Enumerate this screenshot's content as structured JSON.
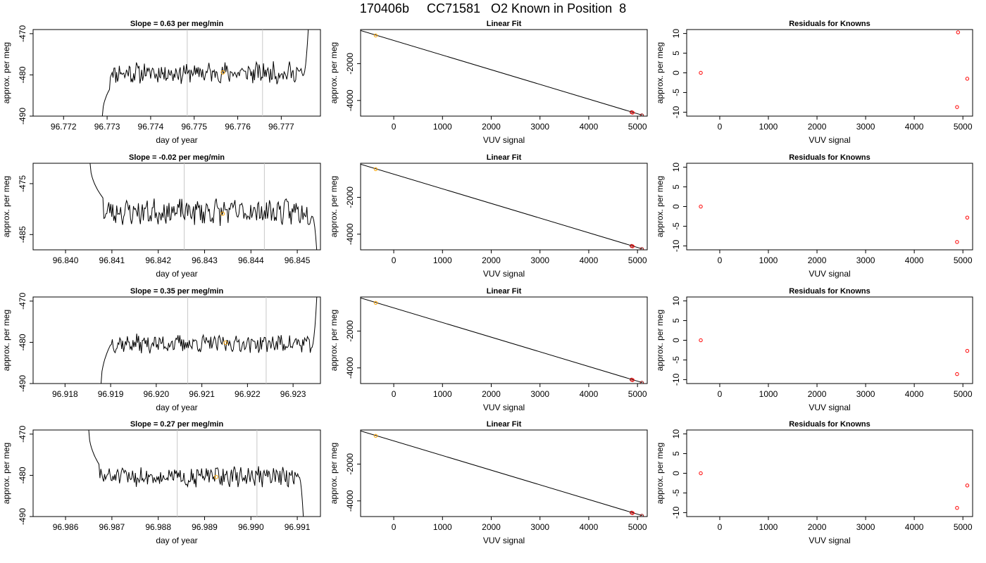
{
  "title": "170406b     CC71581   O2 Known in Position  8",
  "colors": {
    "trace": "#000000",
    "window_lines": "#c8c8c8",
    "marker_mean": "#ffa500",
    "marker_point": "#ff0000",
    "marker_ref": "#8b0000"
  },
  "chart_data": [
    {
      "type": "line",
      "title": "Slope =  0.63  per meg/min",
      "xlabel": "day of year",
      "ylabel": "approx. per meg",
      "xlim": [
        96.7713,
        96.7779
      ],
      "ylim": [
        -490,
        -469
      ],
      "xticks": [
        96.772,
        96.773,
        96.774,
        96.775,
        96.776,
        96.777
      ],
      "xtick_labels": [
        "96.772",
        "96.773",
        "96.774",
        "96.775",
        "96.776",
        "96.777"
      ],
      "yticks": [
        -490,
        -480,
        -470
      ],
      "ytick_labels": [
        "-490",
        "-480",
        "-470"
      ],
      "window": [
        96.77484,
        96.77657
      ],
      "mean_point": [
        96.77566,
        -479.4
      ],
      "trace": {
        "x_start": 96.77289,
        "x_end": 96.77762,
        "start": -490,
        "ramp_end": -483.5,
        "ramp_frac": 0.035,
        "level": -479.5,
        "amplitude": 2.1,
        "end": -469,
        "end_frac": 0.975,
        "seed": 11
      }
    },
    {
      "type": "scatter",
      "title": "Linear Fit",
      "xlabel": "VUV signal",
      "ylabel": "approx. per meg",
      "xlim": [
        -680,
        5200
      ],
      "ylim": [
        -4850,
        -150
      ],
      "xticks": [
        0,
        1000,
        2000,
        3000,
        4000,
        5000
      ],
      "xtick_labels": [
        "0",
        "1000",
        "2000",
        "3000",
        "4000",
        "5000"
      ],
      "yticks": [
        -4000,
        -2000
      ],
      "ytick_labels": [
        "-4000",
        "-2000"
      ],
      "line": [
        [
          -680,
          -200
        ],
        [
          5100,
          -4800
        ]
      ],
      "points": [
        [
          -370,
          -470
        ],
        [
          4880,
          -4640
        ],
        [
          4900,
          -4660
        ],
        [
          5090,
          -4810
        ]
      ],
      "point_colors": [
        "#ffa500",
        "#8b0000",
        "#ff0000",
        "#8b0000"
      ]
    },
    {
      "type": "scatter",
      "title": "Residuals for Knowns",
      "xlabel": "VUV signal",
      "ylabel": "approx. per meg",
      "xlim": [
        -680,
        5200
      ],
      "ylim": [
        -11,
        11
      ],
      "xticks": [
        0,
        1000,
        2000,
        3000,
        4000,
        5000
      ],
      "xtick_labels": [
        "0",
        "1000",
        "2000",
        "3000",
        "4000",
        "5000"
      ],
      "yticks": [
        -10,
        -5,
        0,
        5,
        10
      ],
      "ytick_labels": [
        "-10",
        "-5",
        "0",
        "5",
        "10"
      ],
      "points": [
        [
          -390,
          0
        ],
        [
          4900,
          10.3
        ],
        [
          4880,
          -8.7
        ],
        [
          5090,
          -1.5
        ]
      ]
    },
    {
      "type": "line",
      "title": "Slope =  -0.02  per meg/min",
      "xlabel": "day of year",
      "ylabel": "approx. per meg",
      "xlim": [
        96.8393,
        96.8455
      ],
      "ylim": [
        -488,
        -471
      ],
      "xticks": [
        96.84,
        96.841,
        96.842,
        96.843,
        96.844,
        96.845
      ],
      "xtick_labels": [
        "96.840",
        "96.841",
        "96.842",
        "96.843",
        "96.844",
        "96.845"
      ],
      "yticks": [
        -485,
        -475
      ],
      "ytick_labels": [
        "-485",
        "-475"
      ],
      "window": [
        96.84256,
        96.84429
      ],
      "mean_point": [
        96.84339,
        -480.9
      ],
      "trace": {
        "x_start": 96.84053,
        "x_end": 96.84542,
        "start": -471,
        "ramp_end": -478,
        "ramp_frac": 0.06,
        "level": -480.5,
        "amplitude": 2.1,
        "end": -488,
        "end_frac": 0.98,
        "seed": 23
      }
    },
    {
      "type": "scatter",
      "title": "Linear Fit",
      "xlabel": "VUV signal",
      "ylabel": "approx. per meg",
      "xlim": [
        -680,
        5200
      ],
      "ylim": [
        -4850,
        -150
      ],
      "xticks": [
        0,
        1000,
        2000,
        3000,
        4000,
        5000
      ],
      "xtick_labels": [
        "0",
        "1000",
        "2000",
        "3000",
        "4000",
        "5000"
      ],
      "yticks": [
        -4000,
        -2000
      ],
      "ytick_labels": [
        "-4000",
        "-2000"
      ],
      "line": [
        [
          -680,
          -200
        ],
        [
          5100,
          -4800
        ]
      ],
      "points": [
        [
          -370,
          -470
        ],
        [
          4880,
          -4640
        ],
        [
          4900,
          -4660
        ],
        [
          5090,
          -4810
        ]
      ],
      "point_colors": [
        "#ffa500",
        "#8b0000",
        "#ff0000",
        "#8b0000"
      ]
    },
    {
      "type": "scatter",
      "title": "Residuals for Knowns",
      "xlabel": "VUV signal",
      "ylabel": "approx. per meg",
      "xlim": [
        -680,
        5200
      ],
      "ylim": [
        -11,
        11
      ],
      "xticks": [
        0,
        1000,
        2000,
        3000,
        4000,
        5000
      ],
      "xtick_labels": [
        "0",
        "1000",
        "2000",
        "3000",
        "4000",
        "5000"
      ],
      "yticks": [
        -10,
        -5,
        0,
        5,
        10
      ],
      "ytick_labels": [
        "-10",
        "-5",
        "0",
        "5",
        "10"
      ],
      "points": [
        [
          -390,
          0
        ],
        [
          4880,
          -9.0
        ],
        [
          5090,
          -2.8
        ]
      ]
    },
    {
      "type": "line",
      "title": "Slope =  0.35  per meg/min",
      "xlabel": "day of year",
      "ylabel": "approx. per meg",
      "xlim": [
        96.9173,
        96.9236
      ],
      "ylim": [
        -490,
        -469
      ],
      "xticks": [
        96.918,
        96.919,
        96.92,
        96.921,
        96.922,
        96.923
      ],
      "xtick_labels": [
        "96.918",
        "96.919",
        "96.920",
        "96.921",
        "96.922",
        "96.923"
      ],
      "yticks": [
        -490,
        -480,
        -470
      ],
      "ytick_labels": [
        "-490",
        "-480",
        "-470"
      ],
      "window": [
        96.92069,
        96.92241
      ],
      "mean_point": [
        96.92152,
        -480.1
      ],
      "trace": {
        "x_start": 96.91879,
        "x_end": 96.92352,
        "start": -490,
        "ramp_end": -480.5,
        "ramp_frac": 0.045,
        "level": -480.3,
        "amplitude": 1.8,
        "end": -469,
        "end_frac": 0.975,
        "seed": 37
      }
    },
    {
      "type": "scatter",
      "title": "Linear Fit",
      "xlabel": "VUV signal",
      "ylabel": "approx. per meg",
      "xlim": [
        -680,
        5200
      ],
      "ylim": [
        -4850,
        -150
      ],
      "xticks": [
        0,
        1000,
        2000,
        3000,
        4000,
        5000
      ],
      "xtick_labels": [
        "0",
        "1000",
        "2000",
        "3000",
        "4000",
        "5000"
      ],
      "yticks": [
        -4000,
        -2000
      ],
      "ytick_labels": [
        "-4000",
        "-2000"
      ],
      "line": [
        [
          -680,
          -200
        ],
        [
          5100,
          -4800
        ]
      ],
      "points": [
        [
          -370,
          -470
        ],
        [
          4880,
          -4640
        ],
        [
          4900,
          -4660
        ],
        [
          5090,
          -4810
        ]
      ],
      "point_colors": [
        "#ffa500",
        "#8b0000",
        "#ff0000",
        "#8b0000"
      ]
    },
    {
      "type": "scatter",
      "title": "Residuals for Knowns",
      "xlabel": "VUV signal",
      "ylabel": "approx. per meg",
      "xlim": [
        -680,
        5200
      ],
      "ylim": [
        -11,
        11
      ],
      "xticks": [
        0,
        1000,
        2000,
        3000,
        4000,
        5000
      ],
      "xtick_labels": [
        "0",
        "1000",
        "2000",
        "3000",
        "4000",
        "5000"
      ],
      "yticks": [
        -10,
        -5,
        0,
        5,
        10
      ],
      "ytick_labels": [
        "-10",
        "-5",
        "0",
        "5",
        "10"
      ],
      "points": [
        [
          -390,
          0
        ],
        [
          4880,
          -8.6
        ],
        [
          5090,
          -2.7
        ]
      ]
    },
    {
      "type": "line",
      "title": "Slope =  0.27  per meg/min",
      "xlabel": "day of year",
      "ylabel": "approx. per meg",
      "xlim": [
        96.9853,
        96.9915
      ],
      "ylim": [
        -490,
        -469
      ],
      "xticks": [
        96.986,
        96.987,
        96.988,
        96.989,
        96.99,
        96.991
      ],
      "xtick_labels": [
        "96.986",
        "96.987",
        "96.988",
        "96.989",
        "96.990",
        "96.991"
      ],
      "yticks": [
        -490,
        -480,
        -470
      ],
      "ytick_labels": [
        "-490",
        "-480",
        "-470"
      ],
      "window": [
        96.98841,
        96.99013
      ],
      "mean_point": [
        96.98925,
        -480.4
      ],
      "trace": {
        "x_start": 96.9865,
        "x_end": 96.99113,
        "start": -469,
        "ramp_end": -477.5,
        "ramp_frac": 0.05,
        "level": -480.3,
        "amplitude": 2.0,
        "end": -490,
        "end_frac": 0.98,
        "seed": 51
      }
    },
    {
      "type": "scatter",
      "title": "Linear Fit",
      "xlabel": "VUV signal",
      "ylabel": "approx. per meg",
      "xlim": [
        -680,
        5200
      ],
      "ylim": [
        -4850,
        -150
      ],
      "xticks": [
        0,
        1000,
        2000,
        3000,
        4000,
        5000
      ],
      "xtick_labels": [
        "0",
        "1000",
        "2000",
        "3000",
        "4000",
        "5000"
      ],
      "yticks": [
        -4000,
        -2000
      ],
      "ytick_labels": [
        "-4000",
        "-2000"
      ],
      "line": [
        [
          -680,
          -200
        ],
        [
          5100,
          -4800
        ]
      ],
      "points": [
        [
          -370,
          -470
        ],
        [
          4880,
          -4640
        ],
        [
          4900,
          -4660
        ],
        [
          5090,
          -4810
        ]
      ],
      "point_colors": [
        "#ffa500",
        "#8b0000",
        "#ff0000",
        "#8b0000"
      ]
    },
    {
      "type": "scatter",
      "title": "Residuals for Knowns",
      "xlabel": "VUV signal",
      "ylabel": "approx. per meg",
      "xlim": [
        -680,
        5200
      ],
      "ylim": [
        -11,
        11
      ],
      "xticks": [
        0,
        1000,
        2000,
        3000,
        4000,
        5000
      ],
      "xtick_labels": [
        "0",
        "1000",
        "2000",
        "3000",
        "4000",
        "5000"
      ],
      "yticks": [
        -10,
        -5,
        0,
        5,
        10
      ],
      "ytick_labels": [
        "-10",
        "-5",
        "0",
        "5",
        "10"
      ],
      "points": [
        [
          -390,
          0
        ],
        [
          4880,
          -8.8
        ],
        [
          5090,
          -3.1
        ]
      ]
    }
  ]
}
